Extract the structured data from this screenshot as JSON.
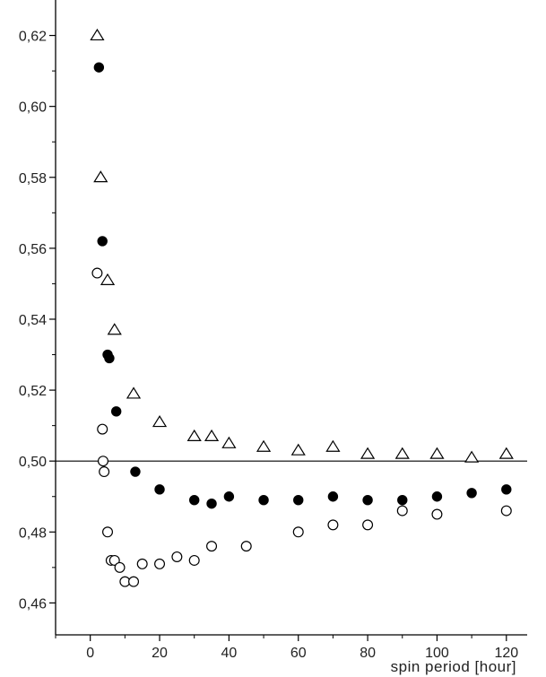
{
  "chart_data": {
    "type": "scatter",
    "title": "",
    "xlabel": "spin period [hour]",
    "ylabel": "",
    "xlim": [
      -10,
      126
    ],
    "ylim": [
      0.451,
      0.63
    ],
    "grid": false,
    "reference_line_y": 0.5,
    "x_ticks": [
      0,
      20,
      40,
      60,
      80,
      100,
      120
    ],
    "x_tick_labels": [
      "0",
      "20",
      "40",
      "60",
      "80",
      "100",
      "120"
    ],
    "y_ticks": [
      0.46,
      0.48,
      0.5,
      0.52,
      0.54,
      0.56,
      0.58,
      0.6,
      0.62
    ],
    "y_tick_labels": [
      "0,46",
      "0,48",
      "0,50",
      "0,52",
      "0,54",
      "0,56",
      "0,58",
      "0,60",
      "0,62"
    ],
    "series": [
      {
        "marker": "triangle-open",
        "color": "#000000",
        "x": [
          2,
          3,
          5,
          7,
          12.5,
          20,
          30,
          35,
          40,
          50,
          60,
          70,
          80,
          90,
          100,
          110,
          120
        ],
        "y": [
          0.62,
          0.58,
          0.551,
          0.537,
          0.519,
          0.511,
          0.507,
          0.507,
          0.505,
          0.504,
          0.503,
          0.504,
          0.502,
          0.502,
          0.502,
          0.501,
          0.502
        ]
      },
      {
        "marker": "circle-filled",
        "color": "#000000",
        "x": [
          2.5,
          3.5,
          5,
          5.5,
          7.5,
          13,
          20,
          30,
          35,
          40,
          50,
          60,
          70,
          80,
          90,
          100,
          110,
          120
        ],
        "y": [
          0.611,
          0.562,
          0.53,
          0.529,
          0.514,
          0.497,
          0.492,
          0.489,
          0.488,
          0.49,
          0.489,
          0.489,
          0.49,
          0.489,
          0.489,
          0.49,
          0.491,
          0.492
        ]
      },
      {
        "marker": "circle-open",
        "color": "#000000",
        "x": [
          2,
          3.5,
          3.7,
          4,
          5,
          6,
          7,
          8.5,
          10,
          12.5,
          15,
          20,
          25,
          30,
          35,
          45,
          60,
          70,
          80,
          90,
          100,
          120
        ],
        "y": [
          0.553,
          0.509,
          0.5,
          0.497,
          0.48,
          0.472,
          0.472,
          0.47,
          0.466,
          0.466,
          0.471,
          0.471,
          0.473,
          0.472,
          0.476,
          0.476,
          0.48,
          0.482,
          0.482,
          0.486,
          0.485,
          0.486
        ]
      }
    ]
  }
}
